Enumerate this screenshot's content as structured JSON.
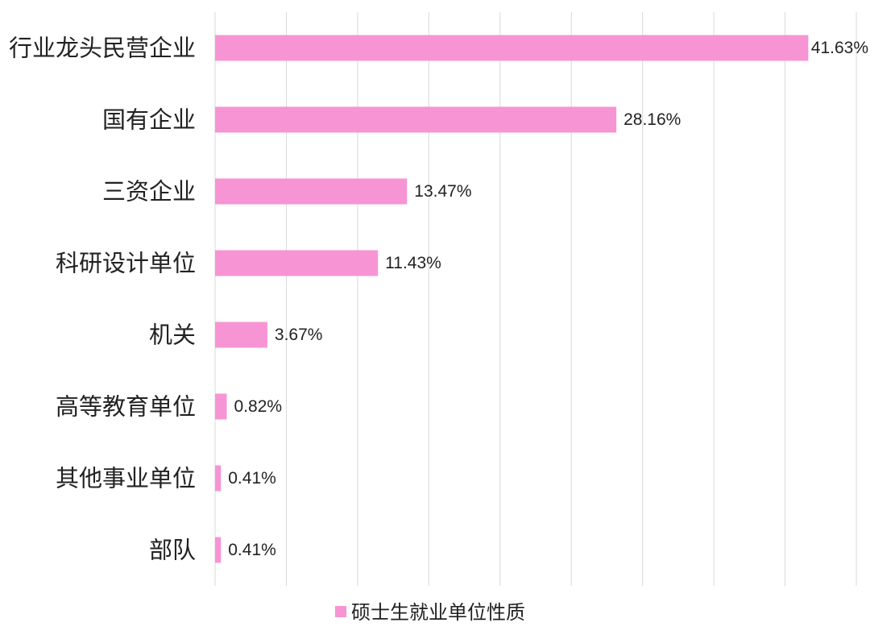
{
  "chart_data": {
    "type": "bar",
    "orientation": "horizontal",
    "categories": [
      "行业龙头民营企业",
      "国有企业",
      "三资企业",
      "科研设计单位",
      "机关",
      "高等教育单位",
      "其他事业单位",
      "部队"
    ],
    "series": [
      {
        "name": "硕士生就业单位性质",
        "values": [
          41.63,
          28.16,
          13.47,
          11.43,
          3.67,
          0.82,
          0.41,
          0.41
        ],
        "labels": [
          "41.63%",
          "28.16%",
          "13.47%",
          "11.43%",
          "3.67%",
          "0.82%",
          "0.41%",
          "0.41%"
        ],
        "color": "#f794d4"
      }
    ],
    "xlim": [
      0,
      45
    ],
    "x_grid_step": 5,
    "grid": true,
    "legend": "bottom",
    "title": "",
    "xlabel": "",
    "ylabel": ""
  }
}
